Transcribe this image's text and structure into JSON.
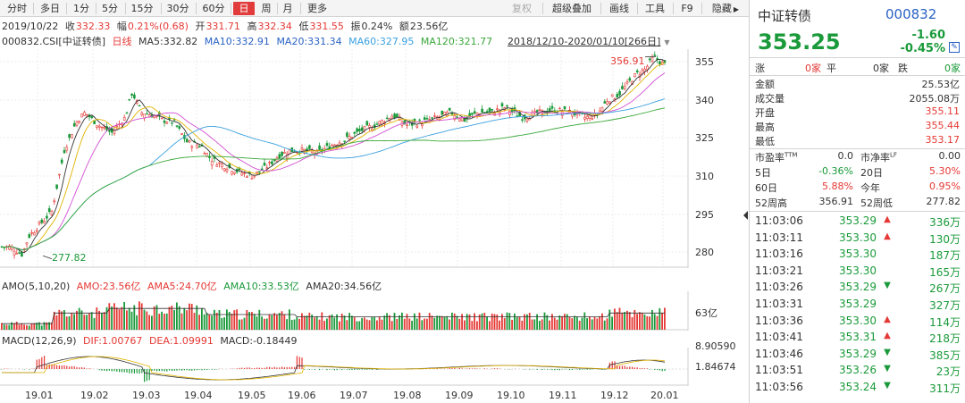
{
  "tabs": [
    "分时",
    "多日",
    "1分",
    "5分",
    "15分",
    "30分",
    "60分",
    "日",
    "周",
    "月",
    "更多"
  ],
  "active_tab": "日",
  "toolbar": {
    "restore": "复权",
    "overlay": "超级叠加",
    "draw": "画线",
    "tools": "工具",
    "f9": "F9",
    "hide": "隐藏"
  },
  "info": {
    "date": "2019/10/22",
    "close_label": "收",
    "close": "332.33",
    "amp_label": "幅",
    "amp": "0.21%(0.68)",
    "open_label": "开",
    "open": "331.71",
    "high_label": "高",
    "high": "332.34",
    "low_label": "低",
    "low": "331.55",
    "swing_label": "振",
    "swing": "0.24%",
    "amount_label": "额",
    "amount": "23.56亿"
  },
  "ma_line": {
    "code": "000832.CSI",
    "name": "[中证转债]",
    "period": "日线",
    "ma5": "MA5:332.82",
    "ma10": "MA10:332.91",
    "ma20": "MA20:331.34",
    "ma60": "MA60:327.95",
    "ma120": "MA120:321.77",
    "range": "2018/12/10-2020/01/10[266日]"
  },
  "price_axis": [
    "355",
    "340",
    "325",
    "310",
    "295",
    "280"
  ],
  "max_label": "356.91",
  "min_label": "277.82",
  "amo": {
    "label": "AMO(5,10,20)",
    "amo": "AMO:23.56亿",
    "ama5": "AMA5:24.70亿",
    "ama10": "AMA10:33.53亿",
    "ama20": "AMA20:34.56亿",
    "axis": "63亿"
  },
  "macd": {
    "label": "MACD(12,26,9)",
    "dif": "DIF:1.00767",
    "dea": "DEA:1.09991",
    "macd": "MACD:-0.18449",
    "axis_top": "8.90590",
    "axis_mid": "1.84674"
  },
  "months": [
    "19.01",
    "19.02",
    "19.03",
    "19.04",
    "19.05",
    "19.06",
    "19.07",
    "19.08",
    "19.09",
    "19.10",
    "19.11",
    "19.12",
    "20.01"
  ],
  "colors": {
    "up": "#e53935",
    "down": "#1a9a3a",
    "ma5": "#333333",
    "ma10": "#e1b400",
    "ma20": "#d24fd2",
    "ma60": "#3aa0e0",
    "ma120": "#3aa83a",
    "blue": "#2a62c4"
  },
  "quote": {
    "name": "中证转债",
    "code": "000832",
    "price": "353.25",
    "change": "-1.60",
    "change_pct": "-0.45%",
    "rise_label": "涨",
    "rise": "0家",
    "flat_label": "平",
    "flat": "0家",
    "fall_label": "跌",
    "fall": "0家",
    "stats": [
      {
        "k": "金额",
        "v": "25.53亿",
        "c": "n"
      },
      {
        "k": "成交量",
        "v": "2055.08万",
        "c": "n"
      },
      {
        "k": "开盘",
        "v": "355.11",
        "c": "r"
      },
      {
        "k": "最高",
        "v": "355.44",
        "c": "r"
      },
      {
        "k": "最低",
        "v": "353.17",
        "c": "r"
      }
    ],
    "pe_label": "市盈率",
    "pe_sup": "TTM",
    "pe": "0.0",
    "pb_label": "市净率",
    "pb_sup": "LF",
    "pb": "0.00",
    "d5_label": "5日",
    "d5": "-0.36%",
    "d20_label": "20日",
    "d20": "5.30%",
    "d60_label": "60日",
    "d60": "5.88%",
    "ytd_label": "今年",
    "ytd": "0.95%",
    "w52h_label": "52周高",
    "w52h": "356.91",
    "w52l_label": "52周低",
    "w52l": "277.82"
  },
  "ticks": [
    {
      "time": "11:03:06",
      "price": "353.29",
      "dir": "up",
      "vol": "336万"
    },
    {
      "time": "11:03:11",
      "price": "353.30",
      "dir": "up",
      "vol": "130万"
    },
    {
      "time": "11:03:16",
      "price": "353.30",
      "dir": "",
      "vol": "187万"
    },
    {
      "time": "11:03:21",
      "price": "353.30",
      "dir": "",
      "vol": "165万"
    },
    {
      "time": "11:03:26",
      "price": "353.29",
      "dir": "down",
      "vol": "267万"
    },
    {
      "time": "11:03:31",
      "price": "353.29",
      "dir": "",
      "vol": "327万"
    },
    {
      "time": "11:03:36",
      "price": "353.30",
      "dir": "up",
      "vol": "114万"
    },
    {
      "time": "11:03:41",
      "price": "353.31",
      "dir": "up",
      "vol": "218万"
    },
    {
      "time": "11:03:46",
      "price": "353.29",
      "dir": "down",
      "vol": "385万"
    },
    {
      "time": "11:03:51",
      "price": "353.26",
      "dir": "down",
      "vol": "23万"
    },
    {
      "time": "11:03:56",
      "price": "353.24",
      "dir": "down",
      "vol": "311万"
    }
  ]
}
